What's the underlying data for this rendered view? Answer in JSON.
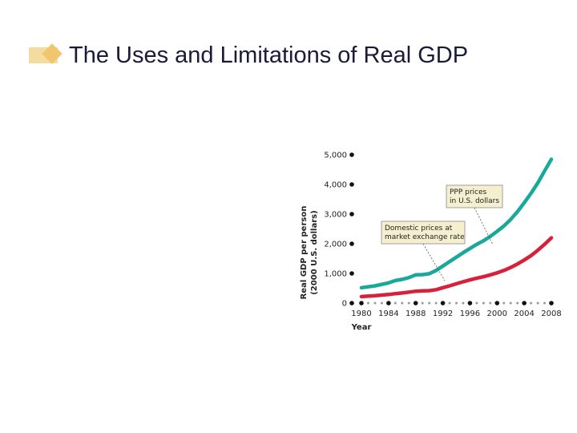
{
  "slide": {
    "title": "The Uses and Limitations of Real GDP"
  },
  "colors": {
    "bullet_light": "#f3dc9e",
    "bullet_dark": "#f0c66f",
    "ppp_series": "#1aa89a",
    "domestic_series": "#d8203a",
    "callout_bg": "#f5efd0"
  },
  "chart_data": {
    "type": "line",
    "xlabel": "Year",
    "ylabel": "Real GDP per person",
    "ylabel2": "(2000 U.S. dollars)",
    "ylim": [
      0,
      5000
    ],
    "xlim": [
      1980,
      2008
    ],
    "y_ticks": [
      "0",
      "1,000",
      "2,000",
      "3,000",
      "4,000",
      "5,000"
    ],
    "y_tick_values": [
      0,
      1000,
      2000,
      3000,
      4000,
      5000
    ],
    "x_ticks": [
      "1980",
      "1984",
      "1988",
      "1992",
      "1996",
      "2000",
      "2004",
      "2008"
    ],
    "x_tick_values": [
      1980,
      1984,
      1988,
      1992,
      1996,
      2000,
      2004,
      2008
    ],
    "series": [
      {
        "key": "ppp",
        "x": [
          1980,
          1982,
          1984,
          1985,
          1986,
          1987,
          1988,
          1989,
          1990,
          1991,
          1992,
          1993,
          1994,
          1995,
          1996,
          1997,
          1998,
          1999,
          2000,
          2001,
          2002,
          2003,
          2004,
          2005,
          2006,
          2007,
          2008
        ],
        "values": [
          520,
          580,
          680,
          760,
          800,
          860,
          950,
          960,
          990,
          1100,
          1250,
          1400,
          1550,
          1700,
          1840,
          1980,
          2100,
          2250,
          2420,
          2600,
          2820,
          3080,
          3380,
          3700,
          4050,
          4450,
          4850
        ]
      },
      {
        "key": "domestic",
        "x": [
          1980,
          1982,
          1984,
          1985,
          1986,
          1987,
          1988,
          1989,
          1990,
          1991,
          1992,
          1993,
          1994,
          1995,
          1996,
          1997,
          1998,
          1999,
          2000,
          2001,
          2002,
          2003,
          2004,
          2005,
          2006,
          2007,
          2008
        ],
        "values": [
          220,
          250,
          290,
          320,
          340,
          370,
          400,
          410,
          420,
          450,
          520,
          580,
          650,
          720,
          780,
          840,
          890,
          950,
          1020,
          1100,
          1200,
          1320,
          1450,
          1600,
          1780,
          1980,
          2200
        ]
      }
    ],
    "annotations": [
      {
        "key": "ppp",
        "lines": [
          "PPP prices",
          "in U.S. dollars"
        ]
      },
      {
        "key": "domestic",
        "lines": [
          "Domestic prices at",
          "market exchange rate"
        ]
      }
    ],
    "grid": false
  }
}
